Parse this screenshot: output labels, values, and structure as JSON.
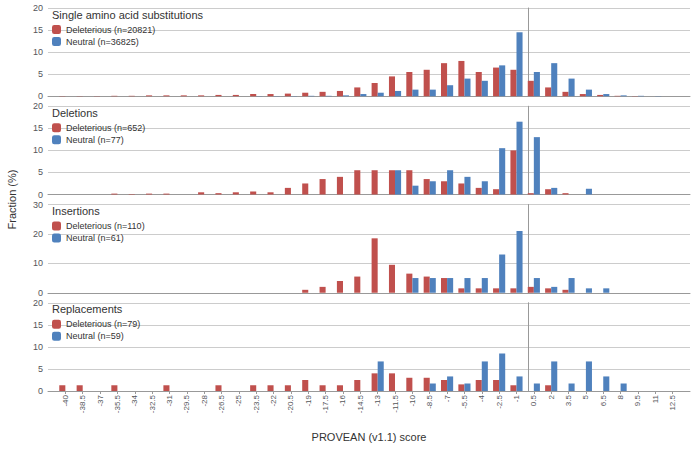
{
  "chart_data": [
    {
      "type": "bar",
      "title": "Single amino acid substitutions",
      "ylabel": "Fraction (%)",
      "x": [
        -40,
        -38.5,
        -37,
        -35.5,
        -34,
        -32.5,
        -31,
        -29.5,
        -28,
        -26.5,
        -25,
        -23.5,
        -22,
        -20.5,
        -19,
        -17.5,
        -16,
        -14.5,
        -13,
        -11.5,
        -10,
        -8.5,
        -7,
        -5.5,
        -4,
        -2.5,
        -1,
        0.5,
        2,
        3.5,
        5,
        6.5,
        8,
        9.5,
        11,
        12.5
      ],
      "series": [
        {
          "name": "Deleterious (n=20821)",
          "color": "#C0504D",
          "values": [
            0.05,
            0.05,
            0.05,
            0.1,
            0.1,
            0.2,
            0.2,
            0.2,
            0.2,
            0.3,
            0.3,
            0.5,
            0.5,
            0.6,
            0.8,
            1.0,
            1.2,
            2.0,
            3.0,
            4.5,
            5.5,
            6.0,
            7.5,
            8.0,
            5.5,
            6.5,
            6.0,
            3.5,
            2.0,
            1.0,
            0.5,
            0.3,
            0.1,
            0.05,
            0,
            0
          ]
        },
        {
          "name": "Neutral (n=36825)",
          "color": "#4F81BD",
          "values": [
            0,
            0,
            0,
            0,
            0,
            0,
            0,
            0,
            0,
            0,
            0,
            0.05,
            0.05,
            0.05,
            0.1,
            0.1,
            0.2,
            0.5,
            0.8,
            1.2,
            1.5,
            1.5,
            2.5,
            4.0,
            3.5,
            7.0,
            14.5,
            5.5,
            7.5,
            4.0,
            1.5,
            0.5,
            0.2,
            0.1,
            0.05,
            0
          ]
        }
      ],
      "xlim": [
        -41.5,
        14.0
      ],
      "ylim": [
        0,
        20
      ],
      "yticks": [
        0,
        5,
        10,
        15,
        20
      ],
      "grid": true,
      "legend": "upper left",
      "tick_labels": "y"
    },
    {
      "type": "bar",
      "title": "Deletions",
      "x": [
        -40,
        -38.5,
        -37,
        -35.5,
        -34,
        -32.5,
        -31,
        -29.5,
        -28,
        -26.5,
        -25,
        -23.5,
        -22,
        -20.5,
        -19,
        -17.5,
        -16,
        -14.5,
        -13,
        -11.5,
        -10,
        -8.5,
        -7,
        -5.5,
        -4,
        -2.5,
        -1,
        0.5,
        2,
        3.5,
        5,
        6.5,
        8,
        9.5,
        11,
        12.5
      ],
      "series": [
        {
          "name": "Deleterious (n=652)",
          "color": "#C0504D",
          "values": [
            0,
            0,
            0,
            0.2,
            0.1,
            0.2,
            0.2,
            0,
            0.5,
            0.3,
            0.5,
            0.7,
            0.5,
            1.5,
            2.5,
            3.5,
            4.0,
            5.5,
            5.5,
            5.5,
            5.5,
            3.5,
            3.0,
            2.5,
            1.5,
            1.2,
            10.0,
            0.3,
            1.2,
            0.3,
            0,
            0,
            0,
            0,
            0,
            0
          ]
        },
        {
          "name": "Neutral (n=77)",
          "color": "#4F81BD",
          "values": [
            0,
            0,
            0,
            0,
            0,
            0,
            0,
            0,
            0,
            0,
            0,
            0,
            0,
            0,
            0,
            0,
            0,
            0,
            0,
            5.5,
            2.0,
            3.0,
            5.5,
            4.0,
            3.0,
            10.5,
            16.5,
            13.0,
            1.5,
            0,
            1.3,
            0,
            0,
            0,
            0,
            0
          ]
        }
      ],
      "xlim": [
        -41.5,
        14.0
      ],
      "ylim": [
        0,
        20
      ],
      "yticks": [
        0,
        5,
        10,
        15,
        20
      ],
      "grid": true,
      "legend": "upper left",
      "tick_labels": "y"
    },
    {
      "type": "bar",
      "title": "Insertions",
      "x": [
        -40,
        -38.5,
        -37,
        -35.5,
        -34,
        -32.5,
        -31,
        -29.5,
        -28,
        -26.5,
        -25,
        -23.5,
        -22,
        -20.5,
        -19,
        -17.5,
        -16,
        -14.5,
        -13,
        -11.5,
        -10,
        -8.5,
        -7,
        -5.5,
        -4,
        -2.5,
        -1,
        0.5,
        2,
        3.5,
        5,
        6.5,
        8,
        9.5,
        11,
        12.5
      ],
      "series": [
        {
          "name": "Deleterious (n=110)",
          "color": "#C0504D",
          "values": [
            0,
            0,
            0,
            0,
            0,
            0,
            0,
            0,
            0,
            0,
            0,
            0,
            0,
            0,
            1.0,
            2.0,
            4.0,
            5.5,
            18.5,
            9.5,
            6.5,
            5.5,
            5.0,
            1.5,
            1.5,
            1.5,
            1.5,
            2.0,
            1.5,
            1.0,
            0,
            0,
            0,
            0,
            0,
            0
          ]
        },
        {
          "name": "Neutral (n=61)",
          "color": "#4F81BD",
          "values": [
            0,
            0,
            0,
            0,
            0,
            0,
            0,
            0,
            0,
            0,
            0,
            0,
            0,
            0,
            0,
            0,
            0,
            0,
            0,
            0,
            5.0,
            5.0,
            5.0,
            5.0,
            5.0,
            13.0,
            21.0,
            5.0,
            2.0,
            5.0,
            1.5,
            1.5,
            0,
            0,
            0,
            0
          ]
        }
      ],
      "xlim": [
        -41.5,
        14.0
      ],
      "ylim": [
        0,
        30
      ],
      "yticks": [
        0,
        10,
        20,
        30
      ],
      "grid": true,
      "legend": "upper left",
      "tick_labels": "y"
    },
    {
      "type": "bar",
      "title": "Replacements",
      "xlabel": "PROVEAN (v1.1) score",
      "x": [
        -40,
        -38.5,
        -37,
        -35.5,
        -34,
        -32.5,
        -31,
        -29.5,
        -28,
        -26.5,
        -25,
        -23.5,
        -22,
        -20.5,
        -19,
        -17.5,
        -16,
        -14.5,
        -13,
        -11.5,
        -10,
        -8.5,
        -7,
        -5.5,
        -4,
        -2.5,
        -1,
        0.5,
        2,
        3.5,
        5,
        6.5,
        8,
        9.5,
        11,
        12.5
      ],
      "series": [
        {
          "name": "Deleterious (n=79)",
          "color": "#C0504D",
          "values": [
            1.3,
            1.3,
            0,
            1.3,
            0,
            0,
            1.3,
            0,
            0,
            1.3,
            0,
            1.3,
            1.3,
            1.3,
            2.5,
            1.3,
            1.3,
            2.5,
            4.0,
            4.0,
            3.0,
            3.0,
            2.5,
            1.5,
            2.5,
            2.5,
            1.3,
            0,
            1.3,
            0,
            0,
            0,
            0,
            0,
            0,
            0
          ]
        },
        {
          "name": "Neutral (n=59)",
          "color": "#4F81BD",
          "values": [
            0,
            0,
            0,
            0,
            0,
            0,
            0,
            0,
            0,
            0,
            0,
            0,
            0,
            0,
            0,
            0,
            0,
            0,
            6.7,
            0,
            0,
            1.7,
            3.3,
            1.7,
            6.7,
            8.5,
            3.3,
            1.7,
            6.7,
            1.7,
            6.7,
            3.3,
            1.7,
            0,
            0,
            0
          ]
        }
      ],
      "xlim": [
        -41.5,
        14.0
      ],
      "ylim": [
        0,
        20
      ],
      "yticks": [
        0,
        5,
        10,
        15,
        20
      ],
      "xticks": [
        -40,
        -38.5,
        -37,
        -35.5,
        -34,
        -32.5,
        -31,
        -29.5,
        -28,
        -26.5,
        -25,
        -23.5,
        -22,
        -20.5,
        -19,
        -17.5,
        -16,
        -14.5,
        -13,
        -11.5,
        -10,
        -8.5,
        -7,
        -5.5,
        -4,
        -2.5,
        -1,
        0.5,
        2,
        3.5,
        5,
        6.5,
        8,
        9.5,
        11,
        12.5
      ],
      "grid": true,
      "legend": "upper left"
    }
  ]
}
